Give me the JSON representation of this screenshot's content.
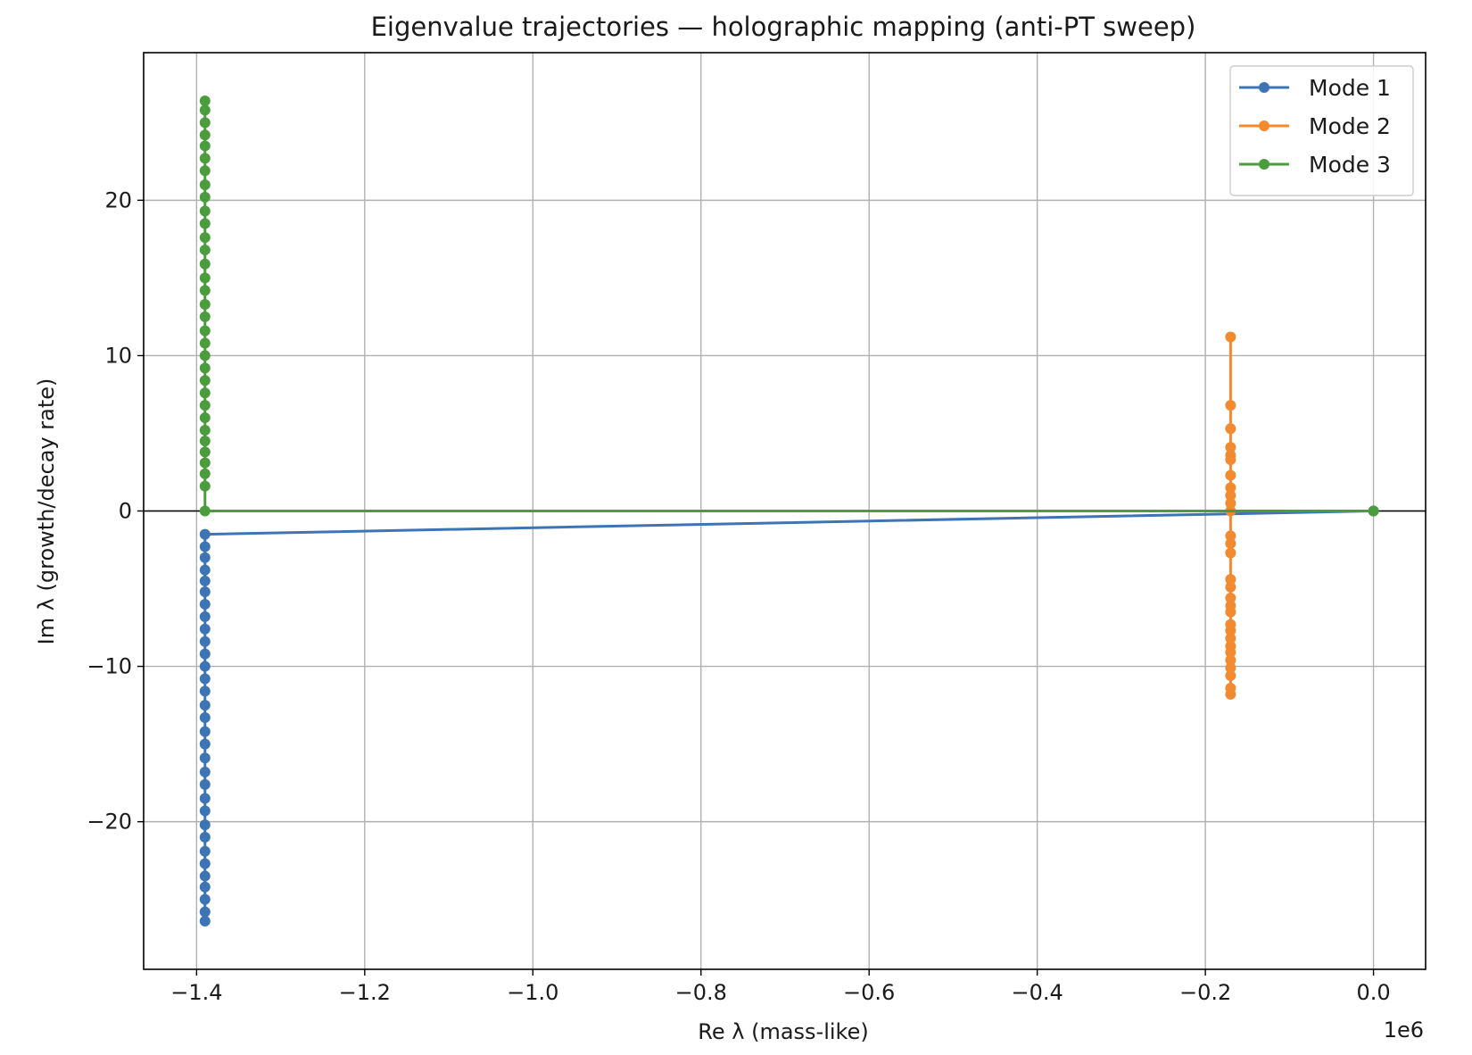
{
  "chart_data": {
    "type": "line",
    "title": "Eigenvalue trajectories — holographic mapping (anti-PT sweep)",
    "xlabel": "Re λ (mass-like)",
    "ylabel": "Im λ (growth/decay rate)",
    "x_offset_text": "1e6",
    "xlim": [
      -1463000,
      62000
    ],
    "ylim": [
      -29.5,
      29.5
    ],
    "xticks": [
      -1400000,
      -1200000,
      -1000000,
      -800000,
      -600000,
      -400000,
      -200000,
      0
    ],
    "xtick_labels": [
      "−1.4",
      "−1.2",
      "−1.0",
      "−0.8",
      "−0.6",
      "−0.4",
      "−0.2",
      "0.0"
    ],
    "yticks": [
      20,
      10,
      0,
      -10,
      -20
    ],
    "ytick_labels": [
      "20",
      "10",
      "0",
      "−10",
      "−20"
    ],
    "grid": true,
    "horizontal_reference_line": 0,
    "legend_position": "top-right",
    "series": [
      {
        "name": "Mode 1",
        "color": "#3d75b4",
        "points": [
          [
            0,
            0
          ],
          [
            -1390000,
            -1.5
          ],
          [
            -1390000,
            -2.3
          ],
          [
            -1390000,
            -3.0
          ],
          [
            -1390000,
            -3.8
          ],
          [
            -1390000,
            -4.5
          ],
          [
            -1390000,
            -5.2
          ],
          [
            -1390000,
            -6.0
          ],
          [
            -1390000,
            -6.8
          ],
          [
            -1390000,
            -7.6
          ],
          [
            -1390000,
            -8.4
          ],
          [
            -1390000,
            -9.2
          ],
          [
            -1390000,
            -10.0
          ],
          [
            -1390000,
            -10.8
          ],
          [
            -1390000,
            -11.6
          ],
          [
            -1390000,
            -12.5
          ],
          [
            -1390000,
            -13.3
          ],
          [
            -1390000,
            -14.2
          ],
          [
            -1390000,
            -15.0
          ],
          [
            -1390000,
            -15.9
          ],
          [
            -1390000,
            -16.8
          ],
          [
            -1390000,
            -17.6
          ],
          [
            -1390000,
            -18.5
          ],
          [
            -1390000,
            -19.3
          ],
          [
            -1390000,
            -20.2
          ],
          [
            -1390000,
            -21.0
          ],
          [
            -1390000,
            -21.9
          ],
          [
            -1390000,
            -22.7
          ],
          [
            -1390000,
            -23.5
          ],
          [
            -1390000,
            -24.2
          ],
          [
            -1390000,
            -25.0
          ],
          [
            -1390000,
            -25.8
          ],
          [
            -1390000,
            -26.4
          ]
        ]
      },
      {
        "name": "Mode 2",
        "color": "#f28a30",
        "points": [
          [
            -170000,
            11.2
          ],
          [
            -170000,
            6.8
          ],
          [
            -170000,
            5.3
          ],
          [
            -170000,
            4.1
          ],
          [
            -170000,
            3.6
          ],
          [
            -170000,
            3.3
          ],
          [
            -170000,
            2.3
          ],
          [
            -170000,
            1.5
          ],
          [
            -170000,
            1.0
          ],
          [
            -170000,
            0.5
          ],
          [
            -170000,
            0.0
          ],
          [
            -170000,
            -1.6
          ],
          [
            -170000,
            -2.1
          ],
          [
            -170000,
            -2.7
          ],
          [
            -170000,
            -4.4
          ],
          [
            -170000,
            -4.9
          ],
          [
            -170000,
            -5.6
          ],
          [
            -170000,
            -6.1
          ],
          [
            -170000,
            -6.5
          ],
          [
            -170000,
            -7.3
          ],
          [
            -170000,
            -7.7
          ],
          [
            -170000,
            -8.2
          ],
          [
            -170000,
            -8.7
          ],
          [
            -170000,
            -9.1
          ],
          [
            -170000,
            -9.6
          ],
          [
            -170000,
            -10.1
          ],
          [
            -170000,
            -10.6
          ],
          [
            -170000,
            -11.4
          ],
          [
            -170000,
            -11.8
          ]
        ]
      },
      {
        "name": "Mode 3",
        "color": "#4a9c3c",
        "points": [
          [
            0,
            0
          ],
          [
            -1390000,
            0
          ],
          [
            -1390000,
            1.6
          ],
          [
            -1390000,
            2.4
          ],
          [
            -1390000,
            3.1
          ],
          [
            -1390000,
            3.8
          ],
          [
            -1390000,
            4.5
          ],
          [
            -1390000,
            5.2
          ],
          [
            -1390000,
            6.0
          ],
          [
            -1390000,
            6.8
          ],
          [
            -1390000,
            7.6
          ],
          [
            -1390000,
            8.4
          ],
          [
            -1390000,
            9.2
          ],
          [
            -1390000,
            10.0
          ],
          [
            -1390000,
            10.8
          ],
          [
            -1390000,
            11.6
          ],
          [
            -1390000,
            12.5
          ],
          [
            -1390000,
            13.3
          ],
          [
            -1390000,
            14.2
          ],
          [
            -1390000,
            15.0
          ],
          [
            -1390000,
            15.9
          ],
          [
            -1390000,
            16.8
          ],
          [
            -1390000,
            17.6
          ],
          [
            -1390000,
            18.5
          ],
          [
            -1390000,
            19.3
          ],
          [
            -1390000,
            20.2
          ],
          [
            -1390000,
            21.0
          ],
          [
            -1390000,
            21.9
          ],
          [
            -1390000,
            22.7
          ],
          [
            -1390000,
            23.5
          ],
          [
            -1390000,
            24.2
          ],
          [
            -1390000,
            25.0
          ],
          [
            -1390000,
            25.8
          ],
          [
            -1390000,
            26.4
          ]
        ]
      }
    ]
  }
}
